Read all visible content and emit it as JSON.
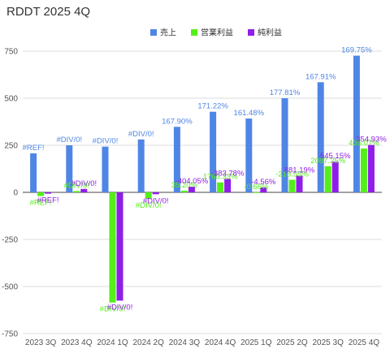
{
  "chart_data": {
    "type": "bar",
    "title": "RDDT 2025 4Q",
    "categories": [
      "2023 3Q",
      "2023 4Q",
      "2024 1Q",
      "2024 2Q",
      "2024 3Q",
      "2024 4Q",
      "2025 1Q",
      "2025 2Q",
      "2025 3Q",
      "2025 4Q"
    ],
    "ylim": [
      -750,
      750
    ],
    "yticks": [
      750,
      500,
      250,
      0,
      -250,
      -500,
      -750
    ],
    "grid": "horizontal",
    "legend_position": "top-center",
    "series": [
      {
        "name": "売上",
        "color": "#4f86e6",
        "values": [
          207,
          250,
          243,
          281,
          348,
          428,
          392,
          500,
          585,
          726
        ],
        "labels": [
          "#REF!",
          "#DIV/0!",
          "#DIV/0!",
          "#DIV/0!",
          "167.90%",
          "171.22%",
          "161.48%",
          "177.81%",
          "167.91%",
          "169.75%"
        ]
      },
      {
        "name": "営業利益",
        "color": "#55ee1a",
        "values": [
          -20,
          7,
          -585,
          -35,
          9,
          53,
          1,
          67,
          139,
          233
        ],
        "labels": [
          "#REF!",
          "#DIV/0!",
          "#DIV/0!",
          "#DIV/0!",
          "35.20%",
          "1765.33%",
          "-0.66%",
          "-218.55%",
          "2087.25%",
          "435.07%"
        ]
      },
      {
        "name": "純利益",
        "color": "#8f1ee6",
        "values": [
          -7,
          18,
          -575,
          -10,
          30,
          71,
          26,
          89,
          163,
          252
        ],
        "labels": [
          "#REF!",
          "#DIV/0!",
          "#DIV/0!",
          "#DIV/0!",
          "-404.05%",
          "-383.78%",
          "-4.56%",
          "881.19%",
          "545.15%",
          "354.93%"
        ]
      }
    ]
  }
}
